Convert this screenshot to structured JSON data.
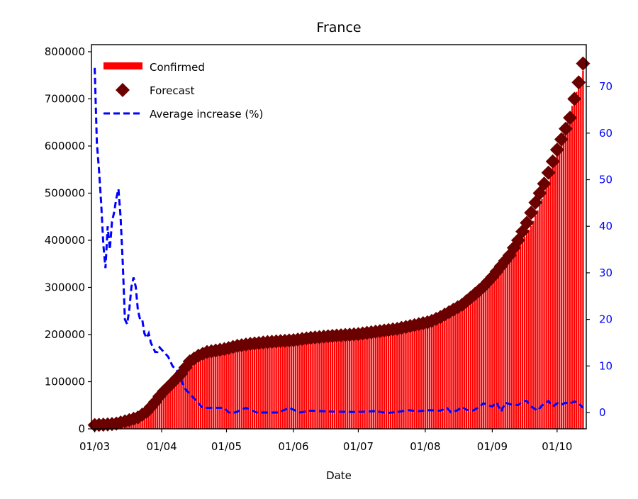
{
  "chart_data": {
    "type": "bar+line",
    "title": "France",
    "xlabel": "Date",
    "ylabel_left": "",
    "ylabel_right": "",
    "start_day": 0,
    "end_day": 226,
    "x_ticks": [
      {
        "label": "01/03",
        "day": 0
      },
      {
        "label": "01/04",
        "day": 31
      },
      {
        "label": "01/05",
        "day": 61
      },
      {
        "label": "01/06",
        "day": 92
      },
      {
        "label": "01/07",
        "day": 122
      },
      {
        "label": "01/08",
        "day": 153
      },
      {
        "label": "01/09",
        "day": 184
      },
      {
        "label": "01/10",
        "day": 214
      }
    ],
    "ylim_left": [
      0,
      815000
    ],
    "yticks_left": [
      0,
      100000,
      200000,
      300000,
      400000,
      500000,
      600000,
      700000,
      800000
    ],
    "ylim_right": [
      -3.5,
      79
    ],
    "yticks_right": [
      0,
      10,
      20,
      30,
      40,
      50,
      60,
      70
    ],
    "legend": {
      "position": "top-left",
      "entries": [
        "Confirmed",
        "Forecast",
        "Average increase (%)"
      ]
    },
    "colors": {
      "confirmed": "#ff0000",
      "forecast": "#6b0000",
      "increase": "#0000ff",
      "right_axis_text": "#0000ff"
    },
    "series": [
      {
        "name": "Confirmed",
        "kind": "bar",
        "points": [
          [
            0,
            130
          ],
          [
            5,
            200
          ],
          [
            10,
            2800
          ],
          [
            15,
            6600
          ],
          [
            20,
            16000
          ],
          [
            24,
            29000
          ],
          [
            28,
            52000
          ],
          [
            31,
            65000
          ],
          [
            35,
            85000
          ],
          [
            40,
            117000
          ],
          [
            45,
            133000
          ],
          [
            50,
            150000
          ],
          [
            55,
            158000
          ],
          [
            61,
            167000
          ],
          [
            70,
            176000
          ],
          [
            80,
            180000
          ],
          [
            92,
            186000
          ],
          [
            100,
            190000
          ],
          [
            110,
            194000
          ],
          [
            122,
            200000
          ],
          [
            135,
            205000
          ],
          [
            145,
            213000
          ],
          [
            153,
            222000
          ],
          [
            160,
            232000
          ],
          [
            168,
            250000
          ],
          [
            175,
            275000
          ],
          [
            184,
            310000
          ],
          [
            190,
            345000
          ],
          [
            196,
            385000
          ],
          [
            202,
            430000
          ],
          [
            206,
            475000
          ],
          [
            210,
            525000
          ],
          [
            214,
            585000
          ],
          [
            218,
            640000
          ],
          [
            222,
            700000
          ],
          [
            226,
            760000
          ]
        ]
      },
      {
        "name": "Forecast",
        "kind": "scatter",
        "points": [
          [
            0,
            8000
          ],
          [
            5,
            9000
          ],
          [
            10,
            11000
          ],
          [
            15,
            17000
          ],
          [
            20,
            24000
          ],
          [
            24,
            36000
          ],
          [
            28,
            57000
          ],
          [
            31,
            75000
          ],
          [
            35,
            93000
          ],
          [
            40,
            117000
          ],
          [
            44,
            143000
          ],
          [
            48,
            155000
          ],
          [
            52,
            163000
          ],
          [
            56,
            166000
          ],
          [
            61,
            170000
          ],
          [
            66,
            176000
          ],
          [
            72,
            180000
          ],
          [
            80,
            184000
          ],
          [
            92,
            188000
          ],
          [
            100,
            193000
          ],
          [
            110,
            197000
          ],
          [
            122,
            201000
          ],
          [
            130,
            206000
          ],
          [
            140,
            212000
          ],
          [
            148,
            220000
          ],
          [
            155,
            227000
          ],
          [
            160,
            237000
          ],
          [
            165,
            250000
          ],
          [
            170,
            263000
          ],
          [
            175,
            282000
          ],
          [
            180,
            302000
          ],
          [
            184,
            322000
          ],
          [
            188,
            345000
          ],
          [
            192,
            368000
          ],
          [
            196,
            400000
          ],
          [
            200,
            437000
          ],
          [
            204,
            480000
          ],
          [
            208,
            520000
          ],
          [
            211,
            555000
          ],
          [
            214,
            592000
          ],
          [
            217,
            625000
          ],
          [
            220,
            660000
          ],
          [
            222,
            700000
          ],
          [
            224,
            735000
          ],
          [
            226,
            775000
          ]
        ]
      },
      {
        "name": "Average increase (%)",
        "kind": "line",
        "style": "dashed",
        "points": [
          [
            0,
            74
          ],
          [
            1,
            58
          ],
          [
            2,
            52
          ],
          [
            3,
            45
          ],
          [
            4,
            36
          ],
          [
            5,
            31
          ],
          [
            6,
            40
          ],
          [
            7,
            35
          ],
          [
            8,
            41
          ],
          [
            9,
            43
          ],
          [
            10,
            46
          ],
          [
            11,
            48
          ],
          [
            12,
            42
          ],
          [
            13,
            32
          ],
          [
            14,
            20
          ],
          [
            15,
            19
          ],
          [
            16,
            22
          ],
          [
            17,
            27
          ],
          [
            18,
            29
          ],
          [
            19,
            27
          ],
          [
            20,
            22
          ],
          [
            21,
            20
          ],
          [
            22,
            20
          ],
          [
            23,
            17
          ],
          [
            24,
            16
          ],
          [
            25,
            17
          ],
          [
            26,
            15
          ],
          [
            27,
            14
          ],
          [
            28,
            13
          ],
          [
            29,
            13
          ],
          [
            30,
            14
          ],
          [
            32,
            13
          ],
          [
            34,
            12
          ],
          [
            36,
            10
          ],
          [
            38,
            9
          ],
          [
            40,
            7
          ],
          [
            42,
            5
          ],
          [
            44,
            4
          ],
          [
            46,
            3
          ],
          [
            48,
            2
          ],
          [
            50,
            1
          ],
          [
            55,
            1
          ],
          [
            60,
            1
          ],
          [
            62,
            0
          ],
          [
            65,
            0
          ],
          [
            70,
            1
          ],
          [
            75,
            0
          ],
          [
            80,
            0
          ],
          [
            85,
            0
          ],
          [
            90,
            1
          ],
          [
            95,
            0
          ],
          [
            100,
            0.4
          ],
          [
            110,
            0.2
          ],
          [
            120,
            0.1
          ],
          [
            125,
            0.2
          ],
          [
            130,
            0.3
          ],
          [
            135,
            -0.1
          ],
          [
            140,
            0.1
          ],
          [
            145,
            0.5
          ],
          [
            150,
            0.3
          ],
          [
            155,
            0.5
          ],
          [
            160,
            0.4
          ],
          [
            163,
            1
          ],
          [
            165,
            0
          ],
          [
            168,
            0.5
          ],
          [
            170,
            1.2
          ],
          [
            172,
            0.6
          ],
          [
            175,
            0.4
          ],
          [
            178,
            1.2
          ],
          [
            180,
            2
          ],
          [
            182,
            1.6
          ],
          [
            184,
            1.3
          ],
          [
            186,
            2.2
          ],
          [
            188,
            0.2
          ],
          [
            190,
            2.1
          ],
          [
            193,
            1.7
          ],
          [
            196,
            1.6
          ],
          [
            198,
            2.4
          ],
          [
            200,
            2.5
          ],
          [
            202,
            1.3
          ],
          [
            205,
            0.4
          ],
          [
            207,
            1.5
          ],
          [
            210,
            2.5
          ],
          [
            212,
            1.3
          ],
          [
            214,
            2
          ],
          [
            216,
            1.7
          ],
          [
            218,
            2.1
          ],
          [
            220,
            1.9
          ],
          [
            222,
            2.4
          ],
          [
            224,
            2
          ],
          [
            226,
            1
          ]
        ]
      }
    ]
  }
}
